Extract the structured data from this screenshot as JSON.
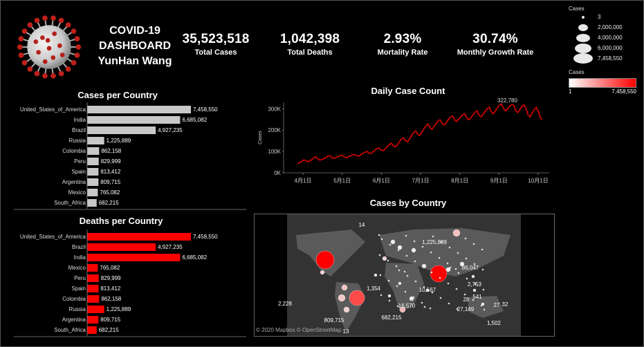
{
  "header": {
    "title_line1": "COVID-19",
    "title_line2": "DASHBOARD",
    "title_line3": "YunHan Wang"
  },
  "kpis": [
    {
      "value": "35,523,518",
      "label": "Total Cases"
    },
    {
      "value": "1,042,398",
      "label": "Total Deaths"
    },
    {
      "value": "2.93%",
      "label": "Mortality Rate"
    },
    {
      "value": "30.74%",
      "label": "Monthly Growth Rate"
    }
  ],
  "legend": {
    "size_title": "Cases",
    "size_items": [
      "3",
      "2,000,000",
      "4,000,000",
      "6,000,000",
      "7,458,550"
    ],
    "color_title": "Cases",
    "color_min": "1",
    "color_max": "7,458,550",
    "color_low": "#ffffff",
    "color_high": "#ff0000"
  },
  "chart_data": [
    {
      "type": "bar",
      "title": "Cases per Country",
      "orientation": "horizontal",
      "color": "#c8c8c8",
      "categories": [
        "United_States_of_America",
        "India",
        "Brazil",
        "Russia",
        "Colombia",
        "Peru",
        "Spain",
        "Argentina",
        "Mexico",
        "South_Africa"
      ],
      "values": [
        7458550,
        6685082,
        4927235,
        1225889,
        862158,
        829999,
        813412,
        809715,
        765082,
        682215
      ],
      "value_labels": [
        "7,458,550",
        "6,685,082",
        "4,927,235",
        "1,225,889",
        "862,158",
        "829,999",
        "813,412",
        "809,715",
        "765,082",
        "682,215"
      ]
    },
    {
      "type": "bar",
      "title": "Deaths per Country",
      "orientation": "horizontal",
      "color": "#ff0000",
      "categories": [
        "United_States_of_America",
        "Brazil",
        "India",
        "Mexico",
        "Peru",
        "Spain",
        "Colombia",
        "Russia",
        "Argentina",
        "South_Africa"
      ],
      "values": [
        7458550,
        4927235,
        6685082,
        765082,
        829999,
        813412,
        862158,
        1225889,
        809715,
        682215
      ],
      "value_labels": [
        "7,458,550",
        "4,927,235",
        "6,685,082",
        "765,082",
        "829,999",
        "813,412",
        "862,158",
        "1,225,889",
        "809,715",
        "682,215"
      ]
    },
    {
      "type": "line",
      "title": "Daily Case Count",
      "ylabel": "Cases",
      "color": "#cc0000",
      "ylim": [
        0,
        330000
      ],
      "yticks": [
        "0K",
        "100K",
        "200K",
        "300K"
      ],
      "ytick_values": [
        0,
        100000,
        200000,
        300000
      ],
      "xticks": [
        "4月1日",
        "5月1日",
        "6月1日",
        "7月1日",
        "8月1日",
        "9月1日",
        "10月1日"
      ],
      "annotation": "322,780",
      "series": [
        {
          "values": [
            42000,
            48000,
            53000,
            60000,
            58000,
            52000,
            55000,
            62000,
            70000,
            75000,
            65000,
            60000,
            62000,
            66000,
            72000,
            78000,
            80000,
            70000,
            68000,
            72000,
            76000,
            80000,
            82000,
            74000,
            71000,
            75000,
            79000,
            84000,
            86000,
            80000,
            78000,
            84000,
            90000,
            96000,
            100000,
            92000,
            90000,
            98000,
            106000,
            114000,
            116000,
            106000,
            104000,
            112000,
            122000,
            132000,
            138000,
            126000,
            122000,
            132000,
            146000,
            158000,
            164000,
            150000,
            146000,
            160000,
            176000,
            190000,
            196000,
            180000,
            176000,
            190000,
            206000,
            220000,
            228000,
            210000,
            204000,
            218000,
            232000,
            244000,
            248000,
            230000,
            224000,
            236000,
            250000,
            262000,
            266000,
            248000,
            240000,
            250000,
            262000,
            272000,
            276000,
            256000,
            248000,
            258000,
            270000,
            282000,
            290000,
            270000,
            262000,
            274000,
            288000,
            300000,
            308000,
            286000,
            276000,
            290000,
            304000,
            318000,
            322780,
            300000,
            290000,
            300000,
            312000,
            320000,
            316000,
            290000,
            282000,
            296000,
            310000,
            318000,
            300000,
            270000,
            262000,
            280000,
            296000,
            306000,
            288000,
            258000,
            250000
          ]
        }
      ]
    },
    {
      "type": "scatter",
      "title": "Cases by Country",
      "map_attribution": "© 2020 Mapbox © OpenStreetMap",
      "labels": [
        "14",
        "1,225,889",
        "86,047",
        "1,354",
        "10,567",
        "2,753",
        "541",
        "28",
        "27",
        "32",
        "27,149",
        "16,570",
        "2,228",
        "809,715",
        "682,215",
        "1,502",
        "13"
      ]
    }
  ]
}
